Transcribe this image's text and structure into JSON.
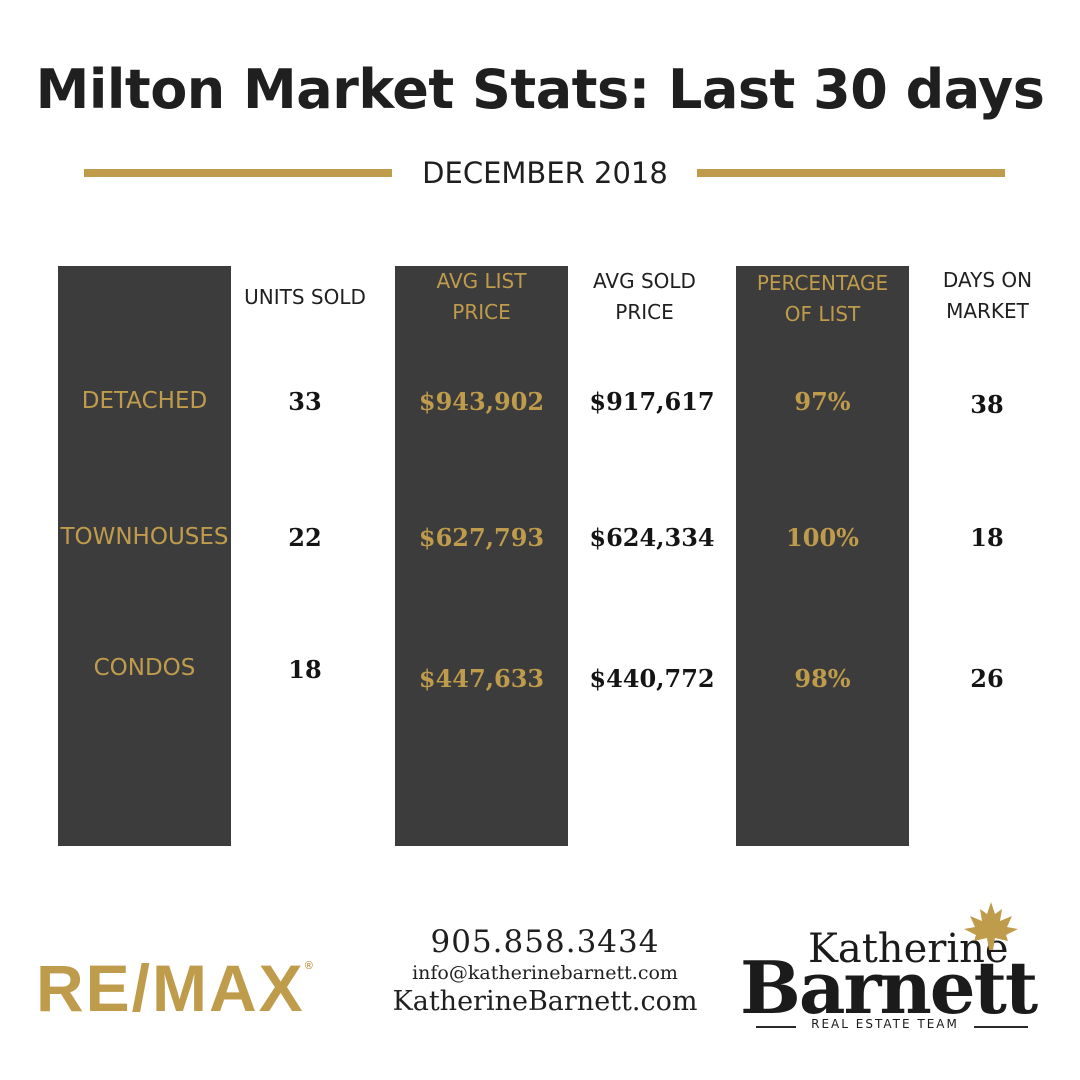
{
  "title": "Milton Market Stats: Last 30 days",
  "subtitle": "DECEMBER 2018",
  "headers": {
    "units_sold": "UNITS SOLD",
    "avg_list_price": [
      "AVG LIST",
      "PRICE"
    ],
    "avg_sold_price": [
      "AVG SOLD",
      "PRICE"
    ],
    "percentage_of_list": [
      "PERCENTAGE",
      "OF LIST"
    ],
    "days_on_market": [
      "DAYS ON",
      "MARKET"
    ]
  },
  "rows": [
    {
      "type": "DETACHED",
      "units_sold": "33",
      "avg_list_price": "$943,902",
      "avg_sold_price": "$917,617",
      "percentage_of_list": "97%",
      "days_on_market": "38"
    },
    {
      "type": "TOWNHOUSES",
      "units_sold": "22",
      "avg_list_price": "$627,793",
      "avg_sold_price": "$624,334",
      "percentage_of_list": "100%",
      "days_on_market": "18"
    },
    {
      "type": "CONDOS",
      "units_sold": "18",
      "avg_list_price": "$447,633",
      "avg_sold_price": "$440,772",
      "percentage_of_list": "98%",
      "days_on_market": "26"
    }
  ],
  "footer": {
    "remax_logo": "RE/MAX",
    "remax_mark": "®",
    "phone": "905.858.3434",
    "email": "info@katherinebarnett.com",
    "website": "KatherineBarnett.com",
    "brand_first": "Katherine",
    "brand_last": "Barnett",
    "brand_tagline": "REAL ESTATE TEAM"
  },
  "colors": {
    "gold": "#bf9c4c",
    "dark_column": "#3c3c3c",
    "text": "#1f1f1f",
    "background": "#ffffff"
  },
  "icons": {
    "brand_leaf": "maple-leaf-icon"
  }
}
